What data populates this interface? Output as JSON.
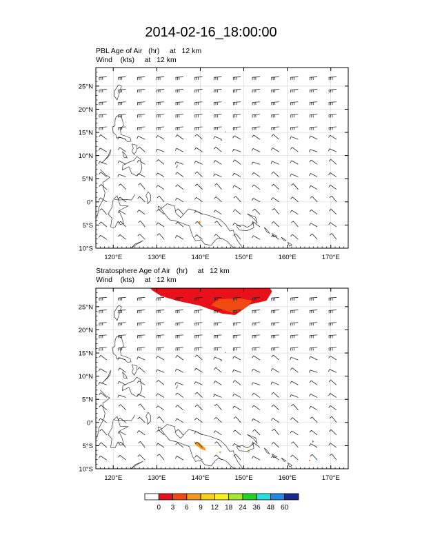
{
  "page_title": "2014-02-16_18:00:00",
  "panels": [
    {
      "subtitle_line1": "PBL Age of Air   (hr)     at   12 km",
      "subtitle_line2": "Wind    (kts)     at   12 km"
    },
    {
      "subtitle_line1": "Stratosphere Age of Air   (hr)     at   12 km",
      "subtitle_line2": "Wind    (kts)     at   12 km"
    }
  ],
  "colorbar": {
    "labels": [
      "0",
      "3",
      "6",
      "9",
      "12",
      "18",
      "24",
      "36",
      "48",
      "60"
    ],
    "colors": [
      "#ffffff",
      "#e8101a",
      "#f04a12",
      "#f29a1e",
      "#f5d01e",
      "#f8f01e",
      "#a8e830",
      "#22d422",
      "#22e0e0",
      "#2288e8",
      "#1a2890"
    ]
  },
  "chart_data": [
    {
      "type": "heatmap",
      "title": "PBL Age of Air   (hr)     at   12 km",
      "subtitle": "Wind    (kts)     at   12 km",
      "xlim": [
        116,
        174
      ],
      "ylim": [
        -10,
        29
      ],
      "x_ticks": [
        120,
        130,
        140,
        150,
        160,
        170
      ],
      "x_tick_labels": [
        "120°E",
        "130°E",
        "140°E",
        "150°E",
        "160°E",
        "170°E"
      ],
      "y_ticks": [
        -10,
        -5,
        0,
        5,
        10,
        15,
        20,
        25
      ],
      "y_tick_labels": [
        "10°S",
        "5°S",
        "0°",
        "5°N",
        "10°N",
        "15°N",
        "20°N",
        "25°N"
      ],
      "grid": true,
      "fill_regions": [
        {
          "class": "6-9 hr",
          "points": [
            [
              139.5,
              -4.1
            ],
            [
              140.2,
              -4.3
            ],
            [
              139.8,
              -4.8
            ]
          ]
        }
      ],
      "wind_barbs": "westerly to south-westerly flow everywhere; wind speeds about 5-15 kts near the equator, strengthening to 20-60 kts north of 15°N"
    },
    {
      "type": "heatmap",
      "title": "Stratosphere Age of Air   (hr)     at   12 km",
      "subtitle": "Wind    (kts)     at   12 km",
      "xlim": [
        116,
        174
      ],
      "ylim": [
        -10,
        29
      ],
      "x_ticks": [
        120,
        130,
        140,
        150,
        160,
        170
      ],
      "x_tick_labels": [
        "120°E",
        "130°E",
        "140°E",
        "150°E",
        "160°E",
        "170°E"
      ],
      "y_ticks": [
        -10,
        -5,
        0,
        5,
        10,
        15,
        20,
        25
      ],
      "y_tick_labels": [
        "10°S",
        "5°S",
        "0°",
        "5°N",
        "10°N",
        "15°N",
        "20°N",
        "25°N"
      ],
      "grid": true,
      "fill_regions": [
        {
          "class": "0-3 hr",
          "points": [
            [
              128.5,
              29
            ],
            [
              156,
              29
            ],
            [
              156.5,
              28.3
            ],
            [
              155.2,
              26.3
            ],
            [
              151.5,
              25.5
            ],
            [
              148,
              23.2
            ],
            [
              145,
              23.5
            ],
            [
              140,
              25.2
            ],
            [
              135,
              26.2
            ],
            [
              131,
              27.3
            ],
            [
              129,
              28.5
            ]
          ]
        },
        {
          "class": "3-6 hr",
          "points": [
            [
              144,
              26.6
            ],
            [
              149,
              26.8
            ],
            [
              152,
              26.3
            ],
            [
              150.5,
              24.8
            ],
            [
              147.5,
              23.6
            ],
            [
              144.5,
              24.6
            ],
            [
              142.5,
              25.3
            ]
          ]
        },
        {
          "class": "6-9 hr",
          "points": [
            [
              138.5,
              -4.1
            ],
            [
              139.7,
              -4.3
            ],
            [
              141,
              -5.4
            ],
            [
              141.3,
              -6.1
            ],
            [
              140.3,
              -5.8
            ],
            [
              139,
              -4.9
            ]
          ]
        },
        {
          "class": "6-9 hr",
          "points": [
            [
              144.3,
              -6.2
            ],
            [
              144.9,
              -6.4
            ],
            [
              144.5,
              -6.7
            ]
          ]
        },
        {
          "class": "6-9 hr",
          "points": [
            [
              150.9,
              -6.2
            ],
            [
              151.4,
              -6.3
            ],
            [
              151.0,
              -6.6
            ]
          ]
        },
        {
          "class": "3-6 hr",
          "points": [
            [
              165.7,
              -3.8
            ],
            [
              166.1,
              -4.1
            ],
            [
              165.8,
              -4.4
            ]
          ]
        },
        {
          "class": "3-6 hr",
          "points": [
            [
              165.0,
              -8.0
            ],
            [
              165.3,
              -8.2
            ],
            [
              165.0,
              -8.4
            ]
          ]
        }
      ],
      "wind_barbs": "westerly to south-westerly flow everywhere; wind speeds about 5-15 kts near the equator, strengthening to 20-60 kts north of 15°N"
    }
  ]
}
